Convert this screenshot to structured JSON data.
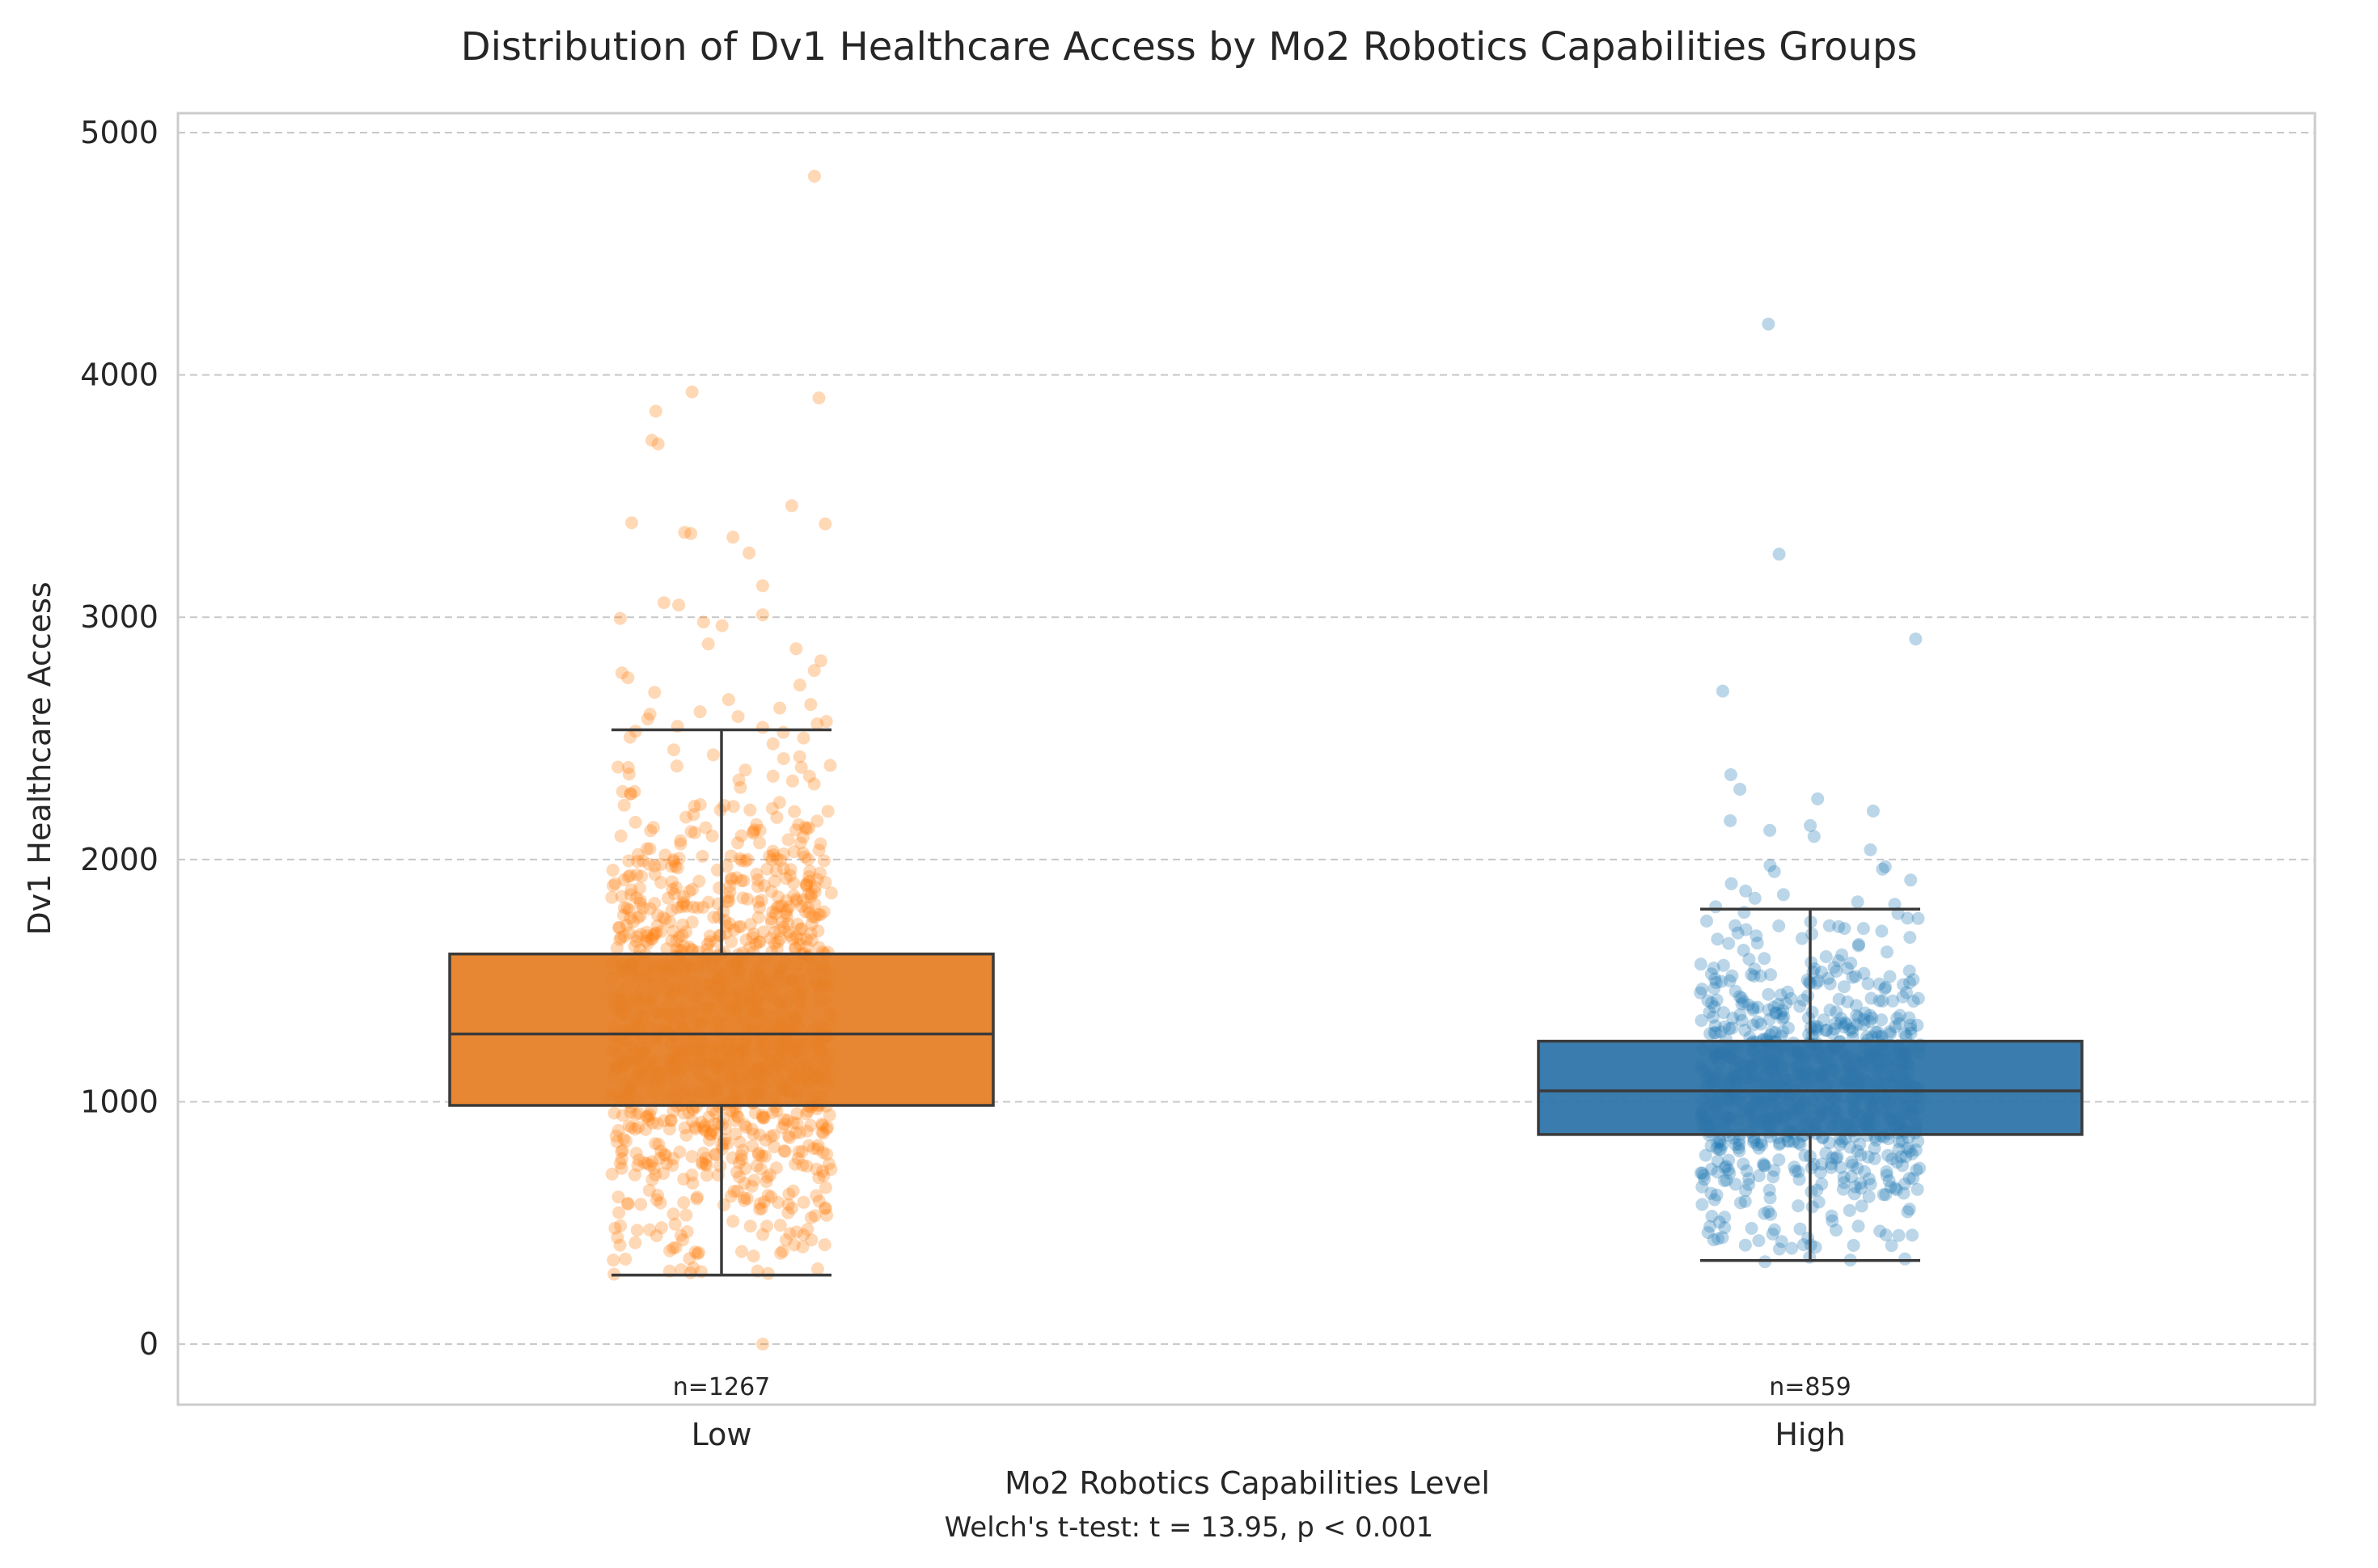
{
  "chart_data": {
    "type": "box",
    "title": "Distribution of Dv1 Healthcare Access by Mo2 Robotics Capabilities Groups",
    "xlabel": "Mo2 Robotics Capabilities Level",
    "ylabel": "Dv1 Healthcare Access",
    "ylim": [
      -250,
      5080
    ],
    "yticks": [
      0,
      1000,
      2000,
      3000,
      4000,
      5000
    ],
    "grid": "y-dashed",
    "annotation": "Welch's t-test: t = 13.95, p < 0.001",
    "categories": [
      "Low",
      "High"
    ],
    "groups": [
      {
        "category": "Low",
        "count_label": "n=1267",
        "n": 1267,
        "color": "#ff7f0e",
        "box_color": "#e58026",
        "q1": 985,
        "median": 1280,
        "q3": 1610,
        "whisker_low": 285,
        "whisker_high": 2535,
        "outliers": [
          4820,
          3930,
          3905,
          3850,
          3730,
          3715,
          3460,
          3390,
          3385,
          3350,
          3345,
          3330,
          3265,
          3130,
          3060,
          3050,
          3010,
          2995,
          2980,
          2965,
          2890,
          2870,
          2820,
          2780,
          2770,
          2750,
          2720,
          2690,
          2660,
          2640,
          2625,
          2610,
          2600,
          2590,
          2580,
          2570,
          2560,
          2550,
          2545,
          0
        ]
      },
      {
        "category": "High",
        "count_label": "n=859",
        "n": 859,
        "color": "#1f77b4",
        "box_color": "#2e74a8",
        "q1": 865,
        "median": 1045,
        "q3": 1250,
        "whisker_low": 345,
        "whisker_high": 1795,
        "outliers": [
          4210,
          3260,
          2910,
          2695,
          2350,
          2290,
          2250,
          2200,
          2160,
          2140,
          2120,
          2095,
          2040,
          1975,
          1970,
          1960,
          1950,
          1915,
          1900,
          1870,
          1855,
          1840,
          1825,
          1815,
          1805,
          340
        ]
      }
    ]
  }
}
